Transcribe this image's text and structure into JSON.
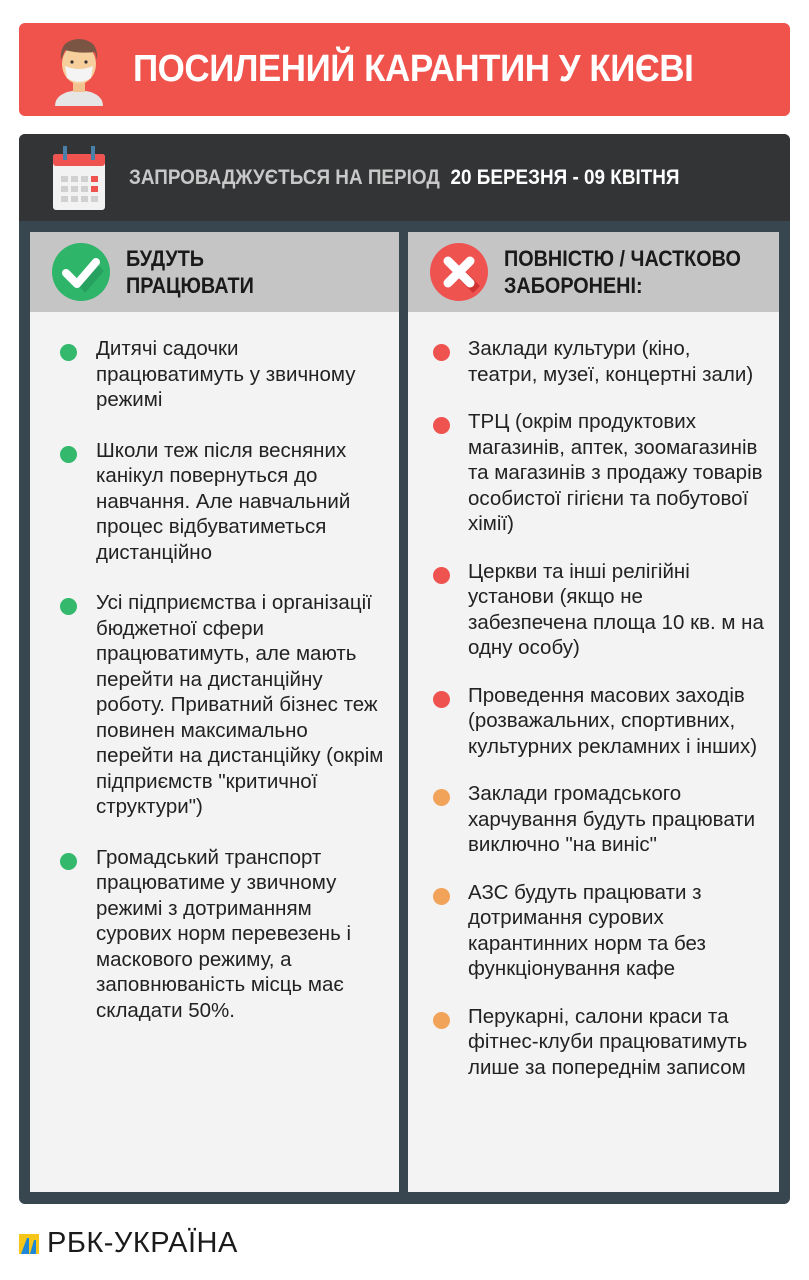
{
  "title": "ПОСИЛЕНИЙ КАРАНТИН У КИЄВІ",
  "period": {
    "label": "ЗАПРОВАДЖУЄТЬСЯ НА ПЕРІОД",
    "dates": "20 БЕРЕЗНЯ - 09 КВІТНЯ"
  },
  "colors": {
    "banner": "#f0524c",
    "green": "#33b86c",
    "red": "#ef5350",
    "orange": "#f2a35a"
  },
  "working": {
    "heading": "БУДУТЬ\nПРАЦЮВАТИ",
    "icon": "check-circle-icon",
    "items": [
      "Дитячі садочки працюватимуть у звичному режимі",
      "Школи теж після весняних канікул повернуться до навчання. Але навчальний процес відбуватиметься дистанційно",
      "Усі підприємства і організації бюджетної сфери працюватимуть, але мають перейти на дистанційну роботу. Приватний бізнес теж повинен максимально перейти на дистанційку (окрім підприємств \"критичної структури\")",
      "Громадський транспорт працюватиме у звичному режимі з дотриманням сурових норм перевезень і маскового режиму, а заповнюваність місць має складати 50%."
    ]
  },
  "banned": {
    "heading": "ПОВНІСТЮ / ЧАСТКОВО\nЗАБОРОНЕНІ:",
    "icon": "x-circle-icon",
    "items": [
      {
        "text": "Заклади культури (кіно, театри, музеї, концертні зали)",
        "status": "red"
      },
      {
        "text": "ТРЦ (окрім продуктових магазинів, аптек, зоомагазинів та магазинів з продажу товарів особистої гігієни та побутової хімії)",
        "status": "red"
      },
      {
        "text": "Церкви та інші релігійні установи (якщо не забезпечена площа 10 кв. м на одну особу)",
        "status": "red"
      },
      {
        "text": "Проведення масових заходів (розважальних, спортивних, культурних рекламних і інших)",
        "status": "red"
      },
      {
        "text": "Заклади громадського харчування будуть працювати виключно \"на виніс\"",
        "status": "orange"
      },
      {
        "text": "АЗС будуть працювати з дотримання сурових карантинних норм та без функціонування кафе",
        "status": "orange"
      },
      {
        "text": "Перукарні, салони краси та фітнес-клуби працюватимуть лише за попереднім записом",
        "status": "orange"
      }
    ]
  },
  "logo": "РБК-УКРАЇНА"
}
